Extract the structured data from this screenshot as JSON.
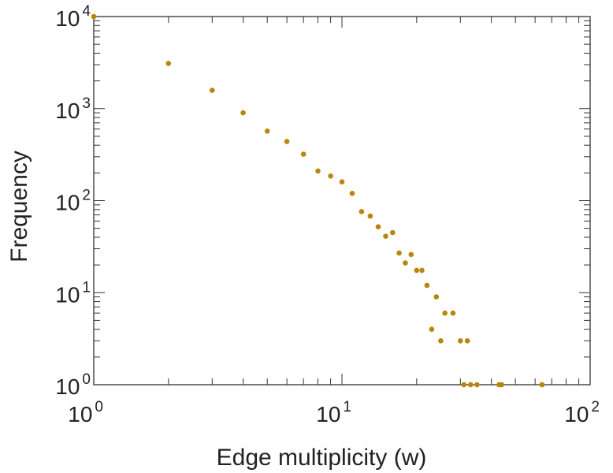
{
  "chart_data": {
    "type": "scatter",
    "xscale": "log",
    "yscale": "log",
    "xlim": [
      1,
      100
    ],
    "ylim": [
      1,
      10000
    ],
    "xlabel": "Edge multiplicity (w)",
    "ylabel": "Frequency",
    "grid": false,
    "legend": "none",
    "x_ticks": [
      {
        "value": 1,
        "base": "10",
        "exp": "0"
      },
      {
        "value": 10,
        "base": "10",
        "exp": "1"
      },
      {
        "value": 100,
        "base": "10",
        "exp": "2"
      }
    ],
    "y_ticks": [
      {
        "value": 1,
        "base": "10",
        "exp": "0"
      },
      {
        "value": 10,
        "base": "10",
        "exp": "1"
      },
      {
        "value": 100,
        "base": "10",
        "exp": "2"
      },
      {
        "value": 1000,
        "base": "10",
        "exp": "3"
      },
      {
        "value": 10000,
        "base": "10",
        "exp": "4"
      }
    ],
    "series": [
      {
        "color": "#b8860b",
        "points": [
          [
            1,
            10000
          ],
          [
            2,
            3100
          ],
          [
            3,
            1580
          ],
          [
            4,
            900
          ],
          [
            5,
            570
          ],
          [
            6,
            440
          ],
          [
            7,
            320
          ],
          [
            8,
            210
          ],
          [
            9,
            185
          ],
          [
            10,
            160
          ],
          [
            11,
            120
          ],
          [
            12,
            76
          ],
          [
            13,
            68
          ],
          [
            14,
            52
          ],
          [
            15,
            41
          ],
          [
            16,
            45
          ],
          [
            17,
            27
          ],
          [
            18,
            21
          ],
          [
            19,
            26
          ],
          [
            20,
            17.5
          ],
          [
            21,
            17.5
          ],
          [
            22,
            12
          ],
          [
            23,
            4
          ],
          [
            24,
            9
          ],
          [
            25,
            3
          ],
          [
            26,
            6
          ],
          [
            28,
            6
          ],
          [
            30,
            3
          ],
          [
            31,
            1
          ],
          [
            32,
            3
          ],
          [
            33,
            1
          ],
          [
            35,
            1
          ],
          [
            43,
            1
          ],
          [
            44,
            1
          ],
          [
            64,
            1
          ]
        ]
      }
    ]
  }
}
